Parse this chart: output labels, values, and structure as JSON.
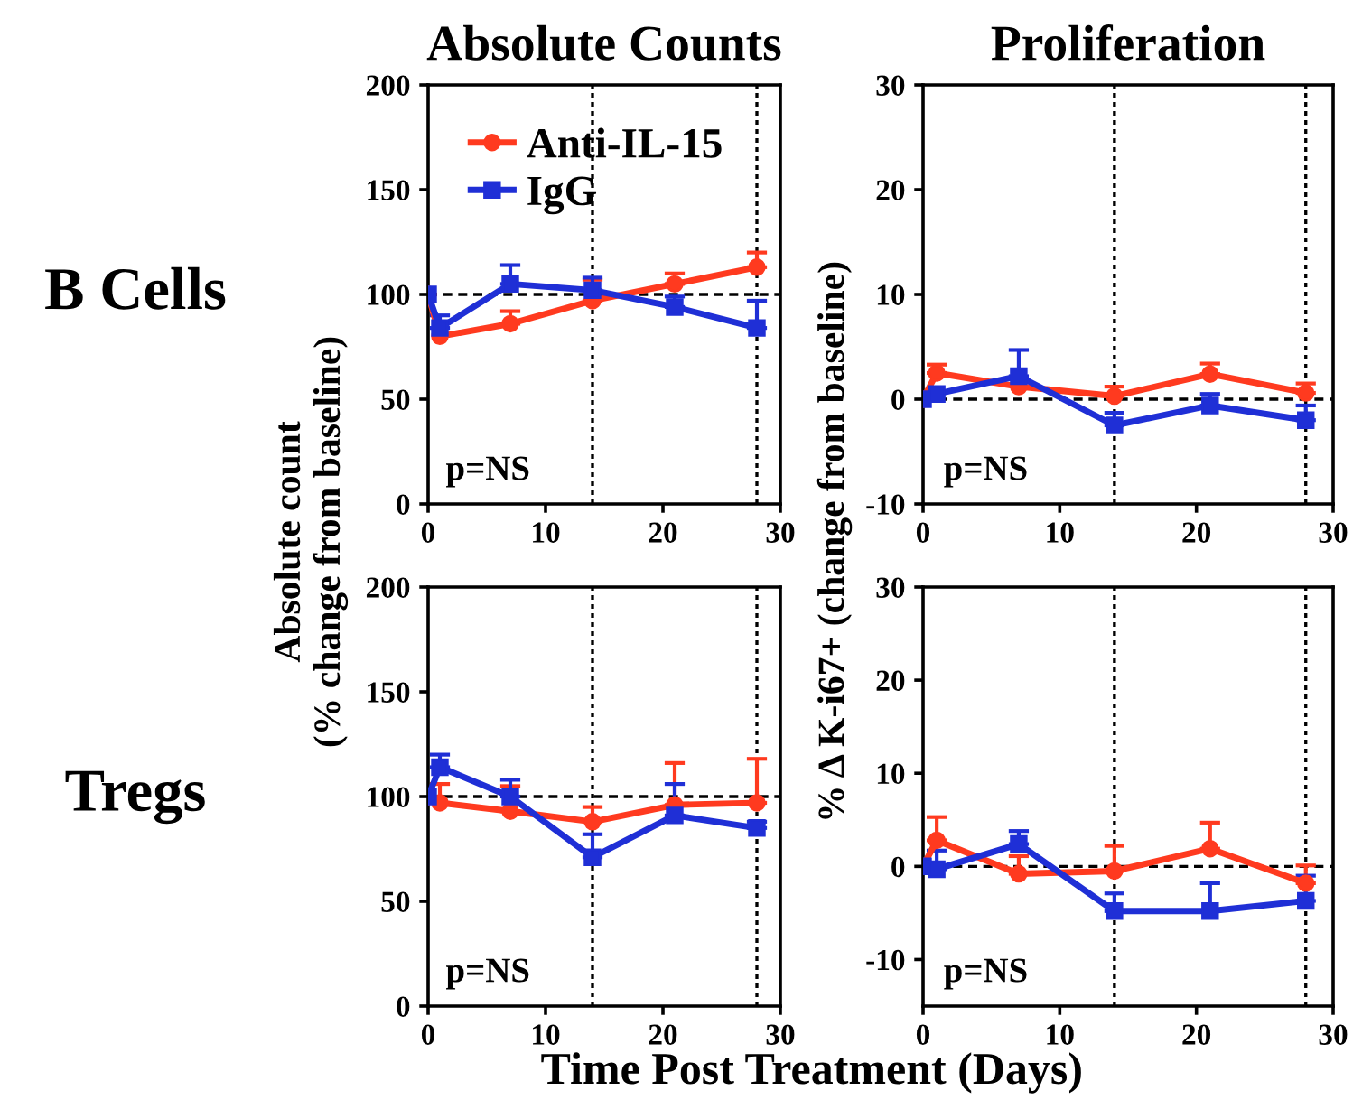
{
  "chart_data": [
    {
      "type": "line",
      "title": "Absolute Counts",
      "ylabel": "Absolute count\n(% change from baseline)",
      "annotations": [
        "B Cells",
        "p=NS"
      ],
      "x": [
        0,
        1,
        7,
        14,
        21,
        28
      ],
      "xlim": [
        0,
        30
      ],
      "xticks": [
        0,
        10,
        20,
        30
      ],
      "ylim": [
        0,
        200
      ],
      "yticks": [
        0,
        50,
        100,
        150,
        200
      ],
      "grid": false,
      "legend": "top left",
      "ref_lines": [
        {
          "axis": "y",
          "value": 100,
          "line_style": "dashed",
          "color": "#000000"
        },
        {
          "axis": "x",
          "value": 14,
          "line_style": "dotted",
          "color": "#000000"
        },
        {
          "axis": "x",
          "value": 28,
          "line_style": "dotted",
          "color": "#000000"
        }
      ],
      "series": [
        {
          "name": "Anti-IL-15",
          "color": "#ff3a1f",
          "marker": "circle",
          "values": [
            100,
            80,
            86,
            97,
            105,
            113
          ],
          "errors": [
            null,
            null,
            [
              86,
              92
            ],
            [
              97,
              107
            ],
            [
              105,
              110
            ],
            [
              113,
              120
            ]
          ]
        },
        {
          "name": "IgG",
          "color": "#1f2fd6",
          "marker": "square",
          "values": [
            100,
            84,
            105,
            102,
            94,
            84
          ],
          "errors": [
            null,
            [
              84,
              90
            ],
            [
              105,
              114
            ],
            [
              102,
              108
            ],
            [
              94,
              99
            ],
            [
              84,
              97
            ]
          ]
        }
      ]
    },
    {
      "type": "line",
      "title": "Proliferation",
      "ylabel": "% Δ K-i67+ (change from baseline)",
      "annotations": [
        "p=NS"
      ],
      "x": [
        0,
        1,
        7,
        14,
        21,
        28
      ],
      "xlim": [
        0,
        30
      ],
      "xticks": [
        0,
        10,
        20,
        30
      ],
      "ylim": [
        -10,
        30
      ],
      "yticks": [
        -10,
        0,
        10,
        20,
        30
      ],
      "grid": false,
      "ref_lines": [
        {
          "axis": "y",
          "value": 0,
          "line_style": "dashed",
          "color": "#000000"
        },
        {
          "axis": "x",
          "value": 14,
          "line_style": "dotted",
          "color": "#000000"
        },
        {
          "axis": "x",
          "value": 28,
          "line_style": "dotted",
          "color": "#000000"
        }
      ],
      "series": [
        {
          "color": "#ff3a1f",
          "marker": "circle",
          "values": [
            0,
            2.5,
            1.2,
            0.3,
            2.4,
            0.6
          ],
          "errors": [
            null,
            [
              2.5,
              3.3
            ],
            null,
            [
              0.3,
              1.2
            ],
            [
              2.4,
              3.4
            ],
            [
              0.6,
              1.5
            ]
          ]
        },
        {
          "color": "#1f2fd6",
          "marker": "square",
          "values": [
            0,
            0.5,
            2.2,
            -2.5,
            -0.6,
            -2
          ],
          "errors": [
            null,
            null,
            [
              2.2,
              4.7
            ],
            [
              -2.5,
              -1.3
            ],
            [
              -0.6,
              0.5
            ],
            [
              -2,
              -0.6
            ]
          ]
        }
      ]
    },
    {
      "type": "line",
      "xlabel": "Time Post Treatment (Days)",
      "annotations": [
        "Tregs",
        "p=NS"
      ],
      "x": [
        0,
        1,
        7,
        14,
        21,
        28
      ],
      "xlim": [
        0,
        30
      ],
      "xticks": [
        0,
        10,
        20,
        30
      ],
      "ylim": [
        0,
        200
      ],
      "yticks": [
        0,
        50,
        100,
        150,
        200
      ],
      "grid": false,
      "ref_lines": [
        {
          "axis": "y",
          "value": 100,
          "line_style": "dashed",
          "color": "#000000"
        },
        {
          "axis": "x",
          "value": 14,
          "line_style": "dotted",
          "color": "#000000"
        },
        {
          "axis": "x",
          "value": 28,
          "line_style": "dotted",
          "color": "#000000"
        }
      ],
      "series": [
        {
          "color": "#ff3a1f",
          "marker": "circle",
          "values": [
            100,
            97,
            93,
            88,
            96,
            97
          ],
          "errors": [
            null,
            [
              97,
              106
            ],
            [
              93,
              105
            ],
            [
              88,
              95
            ],
            [
              96,
              116
            ],
            [
              97,
              118
            ]
          ]
        },
        {
          "color": "#1f2fd6",
          "marker": "square",
          "values": [
            100,
            114,
            100,
            71,
            91,
            85
          ],
          "errors": [
            null,
            [
              114,
              120
            ],
            [
              100,
              108
            ],
            [
              71,
              82
            ],
            [
              91,
              106
            ],
            [
              85,
              88
            ]
          ]
        }
      ]
    },
    {
      "type": "line",
      "annotations": [
        "p=NS"
      ],
      "x": [
        0,
        1,
        7,
        14,
        21,
        28
      ],
      "xlim": [
        0,
        30
      ],
      "xticks": [
        0,
        10,
        20,
        30
      ],
      "ylim": [
        -15,
        30
      ],
      "yticks": [
        -10,
        0,
        10,
        20,
        30
      ],
      "grid": false,
      "ref_lines": [
        {
          "axis": "y",
          "value": 0,
          "line_style": "dashed",
          "color": "#000000"
        },
        {
          "axis": "x",
          "value": 14,
          "line_style": "dotted",
          "color": "#000000"
        },
        {
          "axis": "x",
          "value": 28,
          "line_style": "dotted",
          "color": "#000000"
        }
      ],
      "series": [
        {
          "color": "#ff3a1f",
          "marker": "circle",
          "values": [
            0,
            2.8,
            -0.8,
            -0.5,
            1.9,
            -1.8
          ],
          "errors": [
            null,
            [
              2.8,
              5.3
            ],
            [
              -0.8,
              1.1
            ],
            [
              -0.5,
              2.2
            ],
            [
              1.9,
              4.7
            ],
            [
              -1.8,
              0.1
            ]
          ]
        },
        {
          "color": "#1f2fd6",
          "marker": "square",
          "values": [
            0,
            -0.3,
            2.4,
            -4.8,
            -4.8,
            -3.7
          ],
          "errors": [
            null,
            [
              -0.3,
              1.7
            ],
            [
              2.4,
              3.8
            ],
            [
              -4.8,
              -2.9
            ],
            [
              -4.8,
              -1.8
            ],
            [
              -3.7,
              -1.0
            ]
          ]
        }
      ]
    }
  ]
}
